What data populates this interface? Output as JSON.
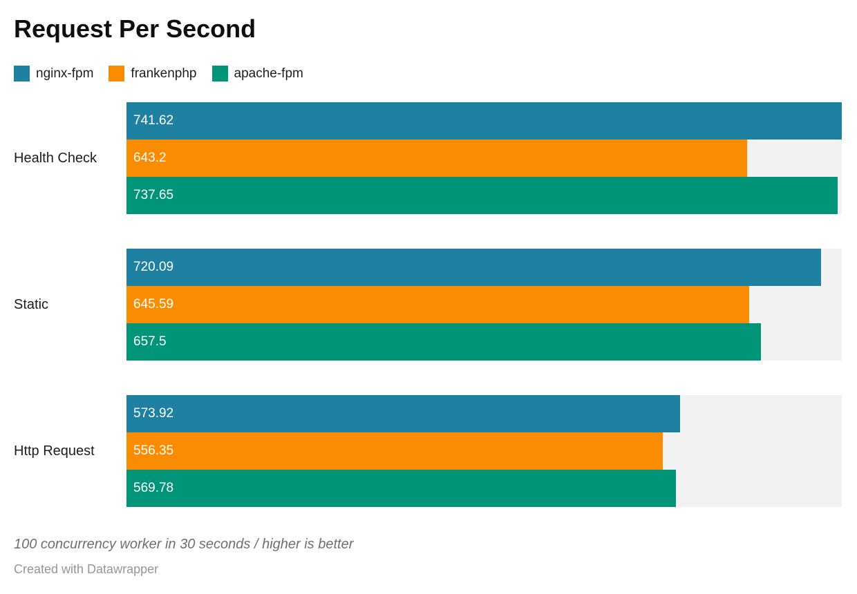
{
  "title": "Request Per Second",
  "legend": {
    "items": [
      {
        "label": "nginx-fpm",
        "color": "#1e81a2"
      },
      {
        "label": "frankenphp",
        "color": "#f98c00"
      },
      {
        "label": "apache-fpm",
        "color": "#009478"
      }
    ]
  },
  "footer": {
    "note": "100 concurrency worker in 30 seconds / higher is better",
    "byline": "Created with Datawrapper"
  },
  "colors": {
    "track": "#f2f2f2",
    "bar_label": "#ffffff",
    "title": "#0e0e0e",
    "category_label": "#1c1c1c",
    "note": "#6e6e6e",
    "byline": "#969696"
  },
  "chart_data": {
    "type": "bar",
    "orientation": "horizontal",
    "title": "Request Per Second",
    "xlabel": "",
    "ylabel": "",
    "categories": [
      "Health Check",
      "Static",
      "Http Request"
    ],
    "series": [
      {
        "name": "nginx-fpm",
        "color": "#1e81a2",
        "values": [
          741.62,
          720.09,
          573.92
        ]
      },
      {
        "name": "frankenphp",
        "color": "#f98c00",
        "values": [
          643.2,
          645.59,
          556.35
        ]
      },
      {
        "name": "apache-fpm",
        "color": "#009478",
        "values": [
          737.65,
          657.5,
          569.78
        ]
      }
    ],
    "xlim": [
      0,
      741.62
    ],
    "grid": false,
    "legend_position": "top",
    "value_labels_inside_bars": true,
    "annotation": "100 concurrency worker in 30 seconds / higher is better"
  }
}
